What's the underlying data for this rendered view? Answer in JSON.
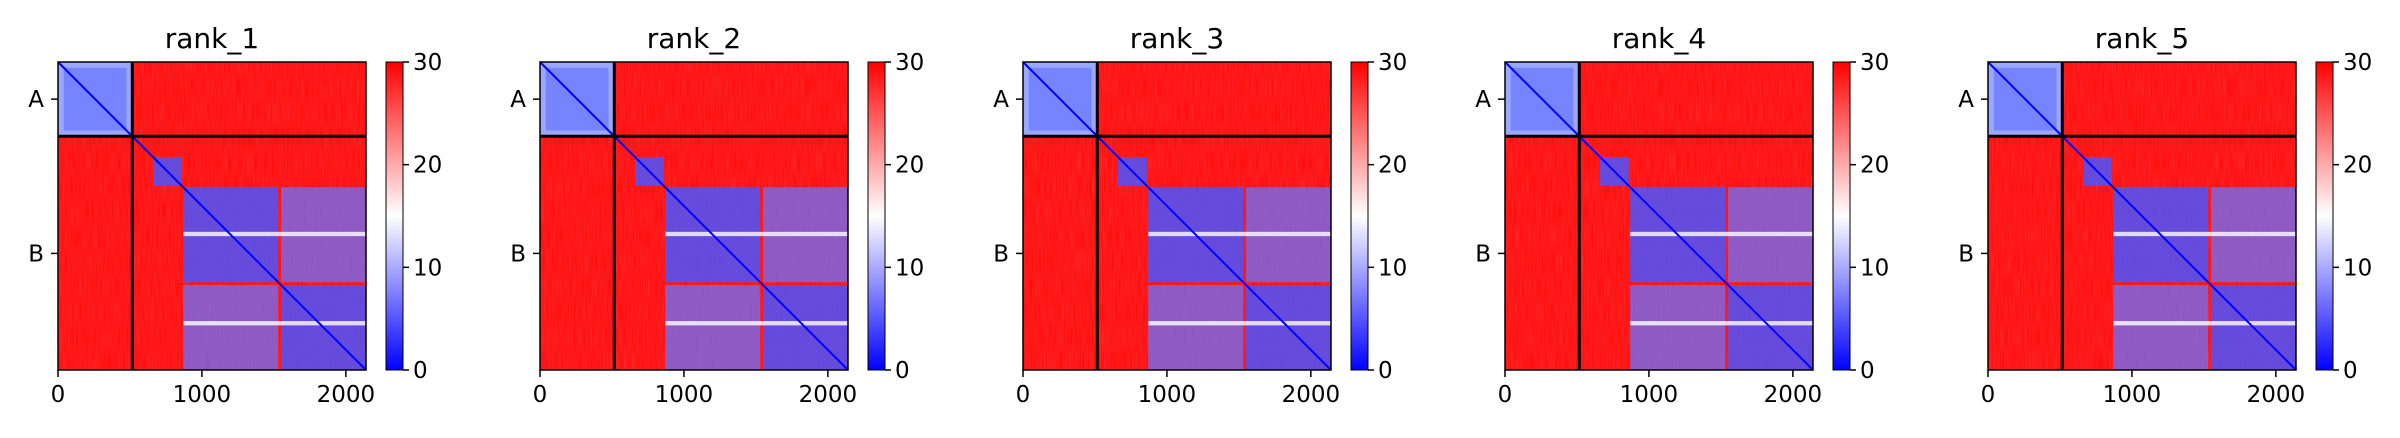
{
  "colorbar": {
    "min": 0,
    "max": 30,
    "ticks": [
      0,
      10,
      20,
      30
    ],
    "colormap": [
      "#0000ff",
      "#ffffff",
      "#ff0000"
    ]
  },
  "chart_data": [
    {
      "type": "heatmap",
      "title": "rank_1",
      "x_ticks": [
        0,
        1000,
        2000
      ],
      "x_range": [
        0,
        2140
      ],
      "y_ticks": [
        {
          "label": "A",
          "center": 258
        },
        {
          "label": "B",
          "center": 1330
        }
      ],
      "chain_boundary": 516,
      "vmin": 0,
      "vmax": 30,
      "colormap": "bwr"
    },
    {
      "type": "heatmap",
      "title": "rank_2",
      "x_ticks": [
        0,
        1000,
        2000
      ],
      "x_range": [
        0,
        2140
      ],
      "y_ticks": [
        {
          "label": "A",
          "center": 258
        },
        {
          "label": "B",
          "center": 1330
        }
      ],
      "chain_boundary": 516,
      "vmin": 0,
      "vmax": 30,
      "colormap": "bwr"
    },
    {
      "type": "heatmap",
      "title": "rank_3",
      "x_ticks": [
        0,
        1000,
        2000
      ],
      "x_range": [
        0,
        2140
      ],
      "y_ticks": [
        {
          "label": "A",
          "center": 258
        },
        {
          "label": "B",
          "center": 1330
        }
      ],
      "chain_boundary": 516,
      "vmin": 0,
      "vmax": 30,
      "colormap": "bwr"
    },
    {
      "type": "heatmap",
      "title": "rank_4",
      "x_ticks": [
        0,
        1000,
        2000
      ],
      "x_range": [
        0,
        2140
      ],
      "y_ticks": [
        {
          "label": "A",
          "center": 258
        },
        {
          "label": "B",
          "center": 1330
        }
      ],
      "chain_boundary": 516,
      "vmin": 0,
      "vmax": 30,
      "colormap": "bwr"
    },
    {
      "type": "heatmap",
      "title": "rank_5",
      "x_ticks": [
        0,
        1000,
        2000
      ],
      "x_range": [
        0,
        2140
      ],
      "y_ticks": [
        {
          "label": "A",
          "center": 258
        },
        {
          "label": "B",
          "center": 1330
        }
      ],
      "chain_boundary": 516,
      "vmin": 0,
      "vmax": 30,
      "colormap": "bwr"
    }
  ]
}
